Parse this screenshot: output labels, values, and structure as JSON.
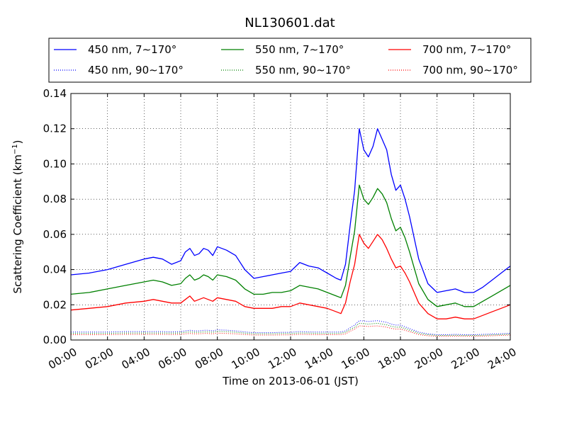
{
  "chart_data": {
    "type": "line",
    "title": "NL130601.dat",
    "xlabel": "Time on 2013-06-01 (JST)",
    "ylabel": "Scattering Coefficient (km",
    "ylabel_sup": "−1",
    "ylabel_close": ")",
    "xlim": [
      0,
      24
    ],
    "ylim": [
      0,
      0.14
    ],
    "grid": true,
    "legend_position": "top",
    "x_tick_labels": [
      "00:00",
      "02:00",
      "04:00",
      "06:00",
      "08:00",
      "10:00",
      "12:00",
      "14:00",
      "16:00",
      "18:00",
      "20:00",
      "22:00",
      "24:00"
    ],
    "y_tick_labels": [
      "0.00",
      "0.02",
      "0.04",
      "0.06",
      "0.08",
      "0.10",
      "0.12",
      "0.14"
    ],
    "x": [
      0,
      1,
      2,
      3,
      4,
      4.5,
      5,
      5.5,
      6,
      6.25,
      6.5,
      6.75,
      7,
      7.25,
      7.5,
      7.75,
      8,
      8.5,
      9,
      9.5,
      10,
      10.5,
      11,
      11.5,
      12,
      12.5,
      13,
      13.5,
      14,
      14.5,
      14.75,
      15,
      15.25,
      15.5,
      15.75,
      16,
      16.25,
      16.5,
      16.75,
      17,
      17.25,
      17.5,
      17.75,
      18,
      18.25,
      18.5,
      19,
      19.5,
      20,
      20.5,
      21,
      21.5,
      22,
      22.5,
      23,
      23.5,
      24
    ],
    "series": [
      {
        "name": "450 nm, 7∼170°",
        "color": "#0000ff",
        "style": "solid",
        "values": [
          0.037,
          0.038,
          0.04,
          0.043,
          0.046,
          0.047,
          0.046,
          0.043,
          0.045,
          0.05,
          0.052,
          0.048,
          0.049,
          0.052,
          0.051,
          0.048,
          0.053,
          0.051,
          0.048,
          0.04,
          0.035,
          0.036,
          0.037,
          0.038,
          0.039,
          0.044,
          0.042,
          0.041,
          0.038,
          0.035,
          0.034,
          0.043,
          0.065,
          0.085,
          0.12,
          0.108,
          0.104,
          0.11,
          0.12,
          0.114,
          0.108,
          0.094,
          0.085,
          0.088,
          0.08,
          0.07,
          0.046,
          0.032,
          0.027,
          0.028,
          0.029,
          0.027,
          0.027,
          0.03,
          0.034,
          0.038,
          0.042
        ]
      },
      {
        "name": "550 nm, 7∼170°",
        "color": "#008000",
        "style": "solid",
        "values": [
          0.026,
          0.027,
          0.029,
          0.031,
          0.033,
          0.034,
          0.033,
          0.031,
          0.032,
          0.035,
          0.037,
          0.034,
          0.035,
          0.037,
          0.036,
          0.034,
          0.037,
          0.036,
          0.034,
          0.029,
          0.026,
          0.026,
          0.027,
          0.027,
          0.028,
          0.031,
          0.03,
          0.029,
          0.027,
          0.025,
          0.024,
          0.031,
          0.047,
          0.062,
          0.088,
          0.08,
          0.077,
          0.081,
          0.086,
          0.083,
          0.078,
          0.069,
          0.062,
          0.064,
          0.058,
          0.05,
          0.032,
          0.023,
          0.019,
          0.02,
          0.021,
          0.019,
          0.019,
          0.022,
          0.025,
          0.028,
          0.031
        ]
      },
      {
        "name": "700 nm, 7∼170°",
        "color": "#ff0000",
        "style": "solid",
        "values": [
          0.017,
          0.018,
          0.019,
          0.021,
          0.022,
          0.023,
          0.022,
          0.021,
          0.021,
          0.023,
          0.025,
          0.022,
          0.023,
          0.024,
          0.023,
          0.022,
          0.024,
          0.023,
          0.022,
          0.019,
          0.018,
          0.018,
          0.018,
          0.019,
          0.019,
          0.021,
          0.02,
          0.019,
          0.018,
          0.016,
          0.015,
          0.021,
          0.033,
          0.043,
          0.06,
          0.055,
          0.052,
          0.056,
          0.06,
          0.057,
          0.052,
          0.046,
          0.041,
          0.042,
          0.038,
          0.033,
          0.021,
          0.015,
          0.012,
          0.012,
          0.013,
          0.012,
          0.012,
          0.014,
          0.016,
          0.018,
          0.02
        ]
      },
      {
        "name": "450 nm, 90∼170°",
        "color": "#0000ff",
        "style": "dotted",
        "values": [
          0.0045,
          0.0045,
          0.0045,
          0.0048,
          0.0048,
          0.0048,
          0.0048,
          0.0046,
          0.0048,
          0.0052,
          0.0055,
          0.0052,
          0.0052,
          0.0055,
          0.0055,
          0.0052,
          0.0058,
          0.0056,
          0.0052,
          0.0046,
          0.0042,
          0.0042,
          0.0042,
          0.0044,
          0.0044,
          0.0048,
          0.0046,
          0.0045,
          0.0045,
          0.0045,
          0.0046,
          0.0052,
          0.007,
          0.0085,
          0.011,
          0.0108,
          0.0105,
          0.0108,
          0.011,
          0.0105,
          0.01,
          0.009,
          0.0085,
          0.0085,
          0.0075,
          0.0065,
          0.0045,
          0.0035,
          0.003,
          0.003,
          0.0032,
          0.003,
          0.003,
          0.0032,
          0.0034,
          0.0036,
          0.0038
        ]
      },
      {
        "name": "550 nm, 90∼170°",
        "color": "#008000",
        "style": "dotted",
        "values": [
          0.0038,
          0.0038,
          0.0038,
          0.004,
          0.004,
          0.004,
          0.004,
          0.0039,
          0.004,
          0.0044,
          0.0046,
          0.0044,
          0.0044,
          0.0046,
          0.0046,
          0.0044,
          0.0049,
          0.0047,
          0.0044,
          0.0039,
          0.0036,
          0.0036,
          0.0036,
          0.0037,
          0.0037,
          0.004,
          0.0039,
          0.0038,
          0.0038,
          0.0038,
          0.0039,
          0.0044,
          0.006,
          0.0073,
          0.0095,
          0.0093,
          0.009,
          0.0093,
          0.0095,
          0.009,
          0.0086,
          0.0078,
          0.0073,
          0.0073,
          0.0065,
          0.0056,
          0.0038,
          0.003,
          0.0026,
          0.0026,
          0.0027,
          0.0026,
          0.0026,
          0.0027,
          0.0029,
          0.0031,
          0.0033
        ]
      },
      {
        "name": "700 nm, 90∼170°",
        "color": "#ff0000",
        "style": "dotted",
        "values": [
          0.003,
          0.003,
          0.003,
          0.0032,
          0.0032,
          0.0032,
          0.0032,
          0.0031,
          0.0032,
          0.0035,
          0.0037,
          0.0035,
          0.0035,
          0.0037,
          0.0037,
          0.0035,
          0.0039,
          0.0037,
          0.0035,
          0.0031,
          0.0028,
          0.0028,
          0.0028,
          0.0029,
          0.0029,
          0.0032,
          0.0031,
          0.003,
          0.003,
          0.003,
          0.0031,
          0.0035,
          0.005,
          0.0062,
          0.008,
          0.0079,
          0.0077,
          0.0079,
          0.008,
          0.0077,
          0.0073,
          0.0066,
          0.0062,
          0.0062,
          0.0055,
          0.0047,
          0.0031,
          0.0024,
          0.0021,
          0.0021,
          0.0022,
          0.0021,
          0.0021,
          0.0022,
          0.0024,
          0.0026,
          0.0028
        ]
      }
    ]
  }
}
